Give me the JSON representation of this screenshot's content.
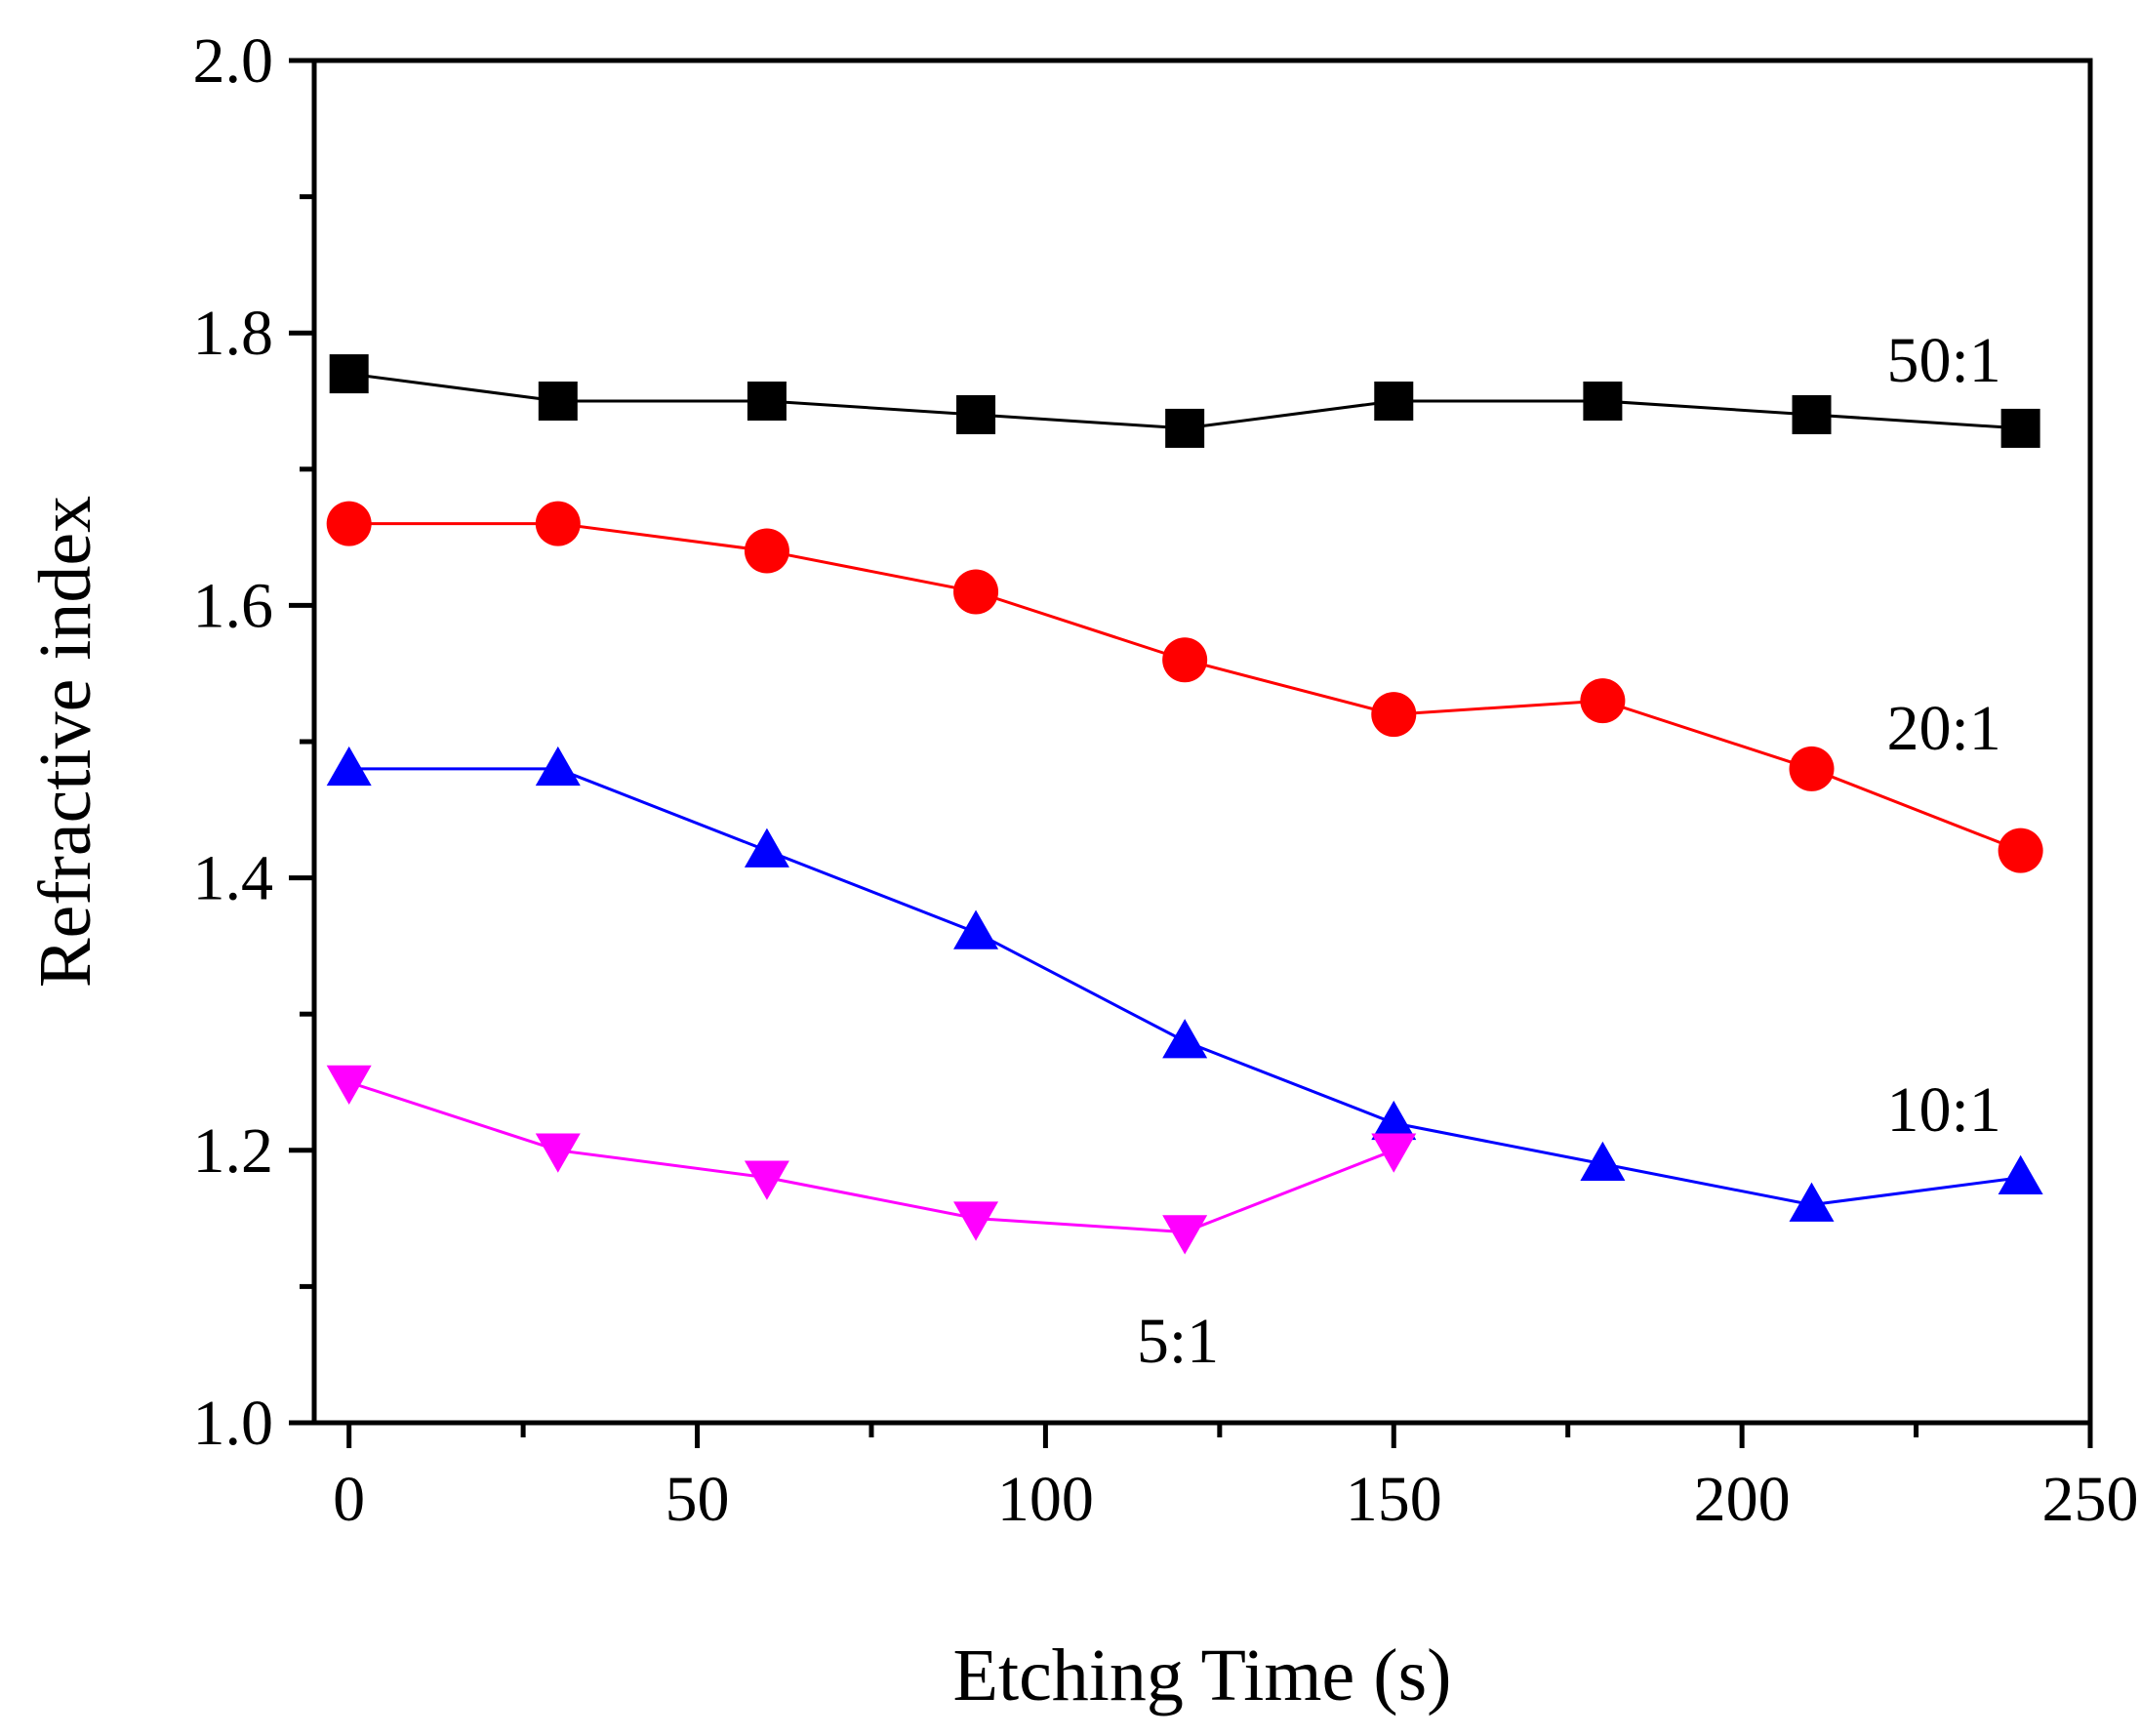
{
  "chart_data": {
    "type": "line",
    "title": "",
    "xlabel": "Etching Time (s)",
    "ylabel": "Refractive index",
    "xlim": [
      -5,
      250
    ],
    "ylim": [
      1.0,
      2.0
    ],
    "x_ticks": [
      0,
      50,
      100,
      150,
      200,
      250
    ],
    "x_tick_labels": [
      "0",
      "50",
      "100",
      "150",
      "200",
      "250"
    ],
    "x_minor_ticks": [
      25,
      75,
      125,
      175,
      225
    ],
    "y_ticks": [
      1.0,
      1.2,
      1.4,
      1.6,
      1.8,
      2.0
    ],
    "y_tick_labels": [
      "1.0",
      "1.2",
      "1.4",
      "1.6",
      "1.8",
      "2.0"
    ],
    "y_minor_ticks": [
      1.1,
      1.3,
      1.5,
      1.7,
      1.9
    ],
    "grid": false,
    "x": [
      0,
      30,
      60,
      90,
      120,
      150,
      180,
      210,
      240
    ],
    "series": [
      {
        "name": "50:1",
        "label": "50:1",
        "color": "#000000",
        "marker": "square",
        "values": [
          1.77,
          1.75,
          1.75,
          1.74,
          1.73,
          1.75,
          1.75,
          1.74,
          1.73
        ],
        "label_pos": [
          229,
          1.78
        ]
      },
      {
        "name": "20:1",
        "label": "20:1",
        "color": "#ff0000",
        "marker": "circle",
        "values": [
          1.66,
          1.66,
          1.64,
          1.61,
          1.56,
          1.52,
          1.53,
          1.48,
          1.42
        ],
        "label_pos": [
          229,
          1.51
        ]
      },
      {
        "name": "10:1",
        "label": "10:1",
        "color": "#0000ff",
        "marker": "triangle-up",
        "values": [
          1.48,
          1.48,
          1.42,
          1.36,
          1.28,
          1.22,
          1.19,
          1.16,
          1.18
        ],
        "label_pos": [
          229,
          1.23
        ]
      },
      {
        "name": "5:1",
        "label": "5:1",
        "color": "#ff00ff",
        "marker": "triangle-down",
        "values": [
          1.25,
          1.2,
          1.18,
          1.15,
          1.14,
          1.2,
          null,
          null,
          null
        ],
        "label_pos": [
          119,
          1.06
        ]
      }
    ]
  }
}
